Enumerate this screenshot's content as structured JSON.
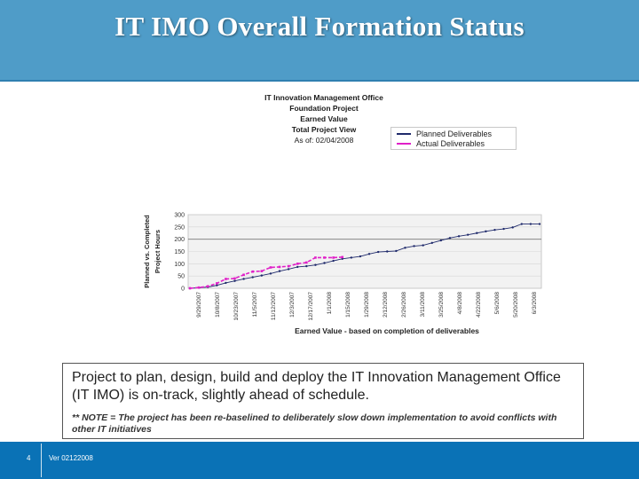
{
  "slide": {
    "title": "IT IMO Overall Formation Status",
    "number": "4",
    "version": "Ver 02122008"
  },
  "textbox": {
    "main": "Project to plan, design, build and deploy the IT Innovation Management Office (IT IMO) is on-track, slightly ahead of schedule.",
    "note": "** NOTE = The project has been re-baselined to deliberately slow down implementation to avoid conflicts with other IT initiatives"
  },
  "colors": {
    "banner": "#4f9cc8",
    "footer": "#0a72b6",
    "planned": "#1f2a6b",
    "actual": "#e020c8"
  },
  "chart_data": {
    "type": "line",
    "title_lines": [
      "IT Innovation Management Office",
      "Foundation Project",
      "Earned Value",
      "Total Project View",
      "As of: 02/04/2008"
    ],
    "xlabel": "Earned Value - based on completion of deliverables",
    "ylabel_lines": [
      "Planned vs. Completed",
      "Project Hours"
    ],
    "ylim": [
      0,
      300
    ],
    "yticks": [
      0,
      50,
      100,
      150,
      200,
      250,
      300
    ],
    "grid": "horizontal",
    "legend_position": "top-right",
    "tick_labels": [
      "9/29/2007",
      "10/8/2007",
      "10/23/2007",
      "11/5/2007",
      "11/12/2007",
      "12/3/2007",
      "12/17/2007",
      "1/1/2008",
      "1/15/2008",
      "1/29/2008",
      "2/12/2008",
      "2/26/2008",
      "3/11/2008",
      "3/25/2008",
      "4/8/2008",
      "4/22/2008",
      "5/6/2008",
      "5/20/2008",
      "6/3/2008"
    ],
    "series": [
      {
        "name": "Planned Deliverables",
        "values": [
          0,
          2,
          5,
          12,
          22,
          30,
          38,
          45,
          52,
          60,
          70,
          78,
          87,
          90,
          95,
          103,
          112,
          120,
          125,
          130,
          140,
          148,
          150,
          152,
          165,
          172,
          175,
          185,
          195,
          205,
          212,
          218,
          225,
          232,
          238,
          242,
          248,
          262,
          262,
          262
        ]
      },
      {
        "name": "Actual Deliverables",
        "values": [
          0,
          3,
          8,
          20,
          38,
          40,
          55,
          68,
          70,
          85,
          87,
          90,
          100,
          105,
          125,
          125,
          125,
          127
        ]
      }
    ]
  }
}
